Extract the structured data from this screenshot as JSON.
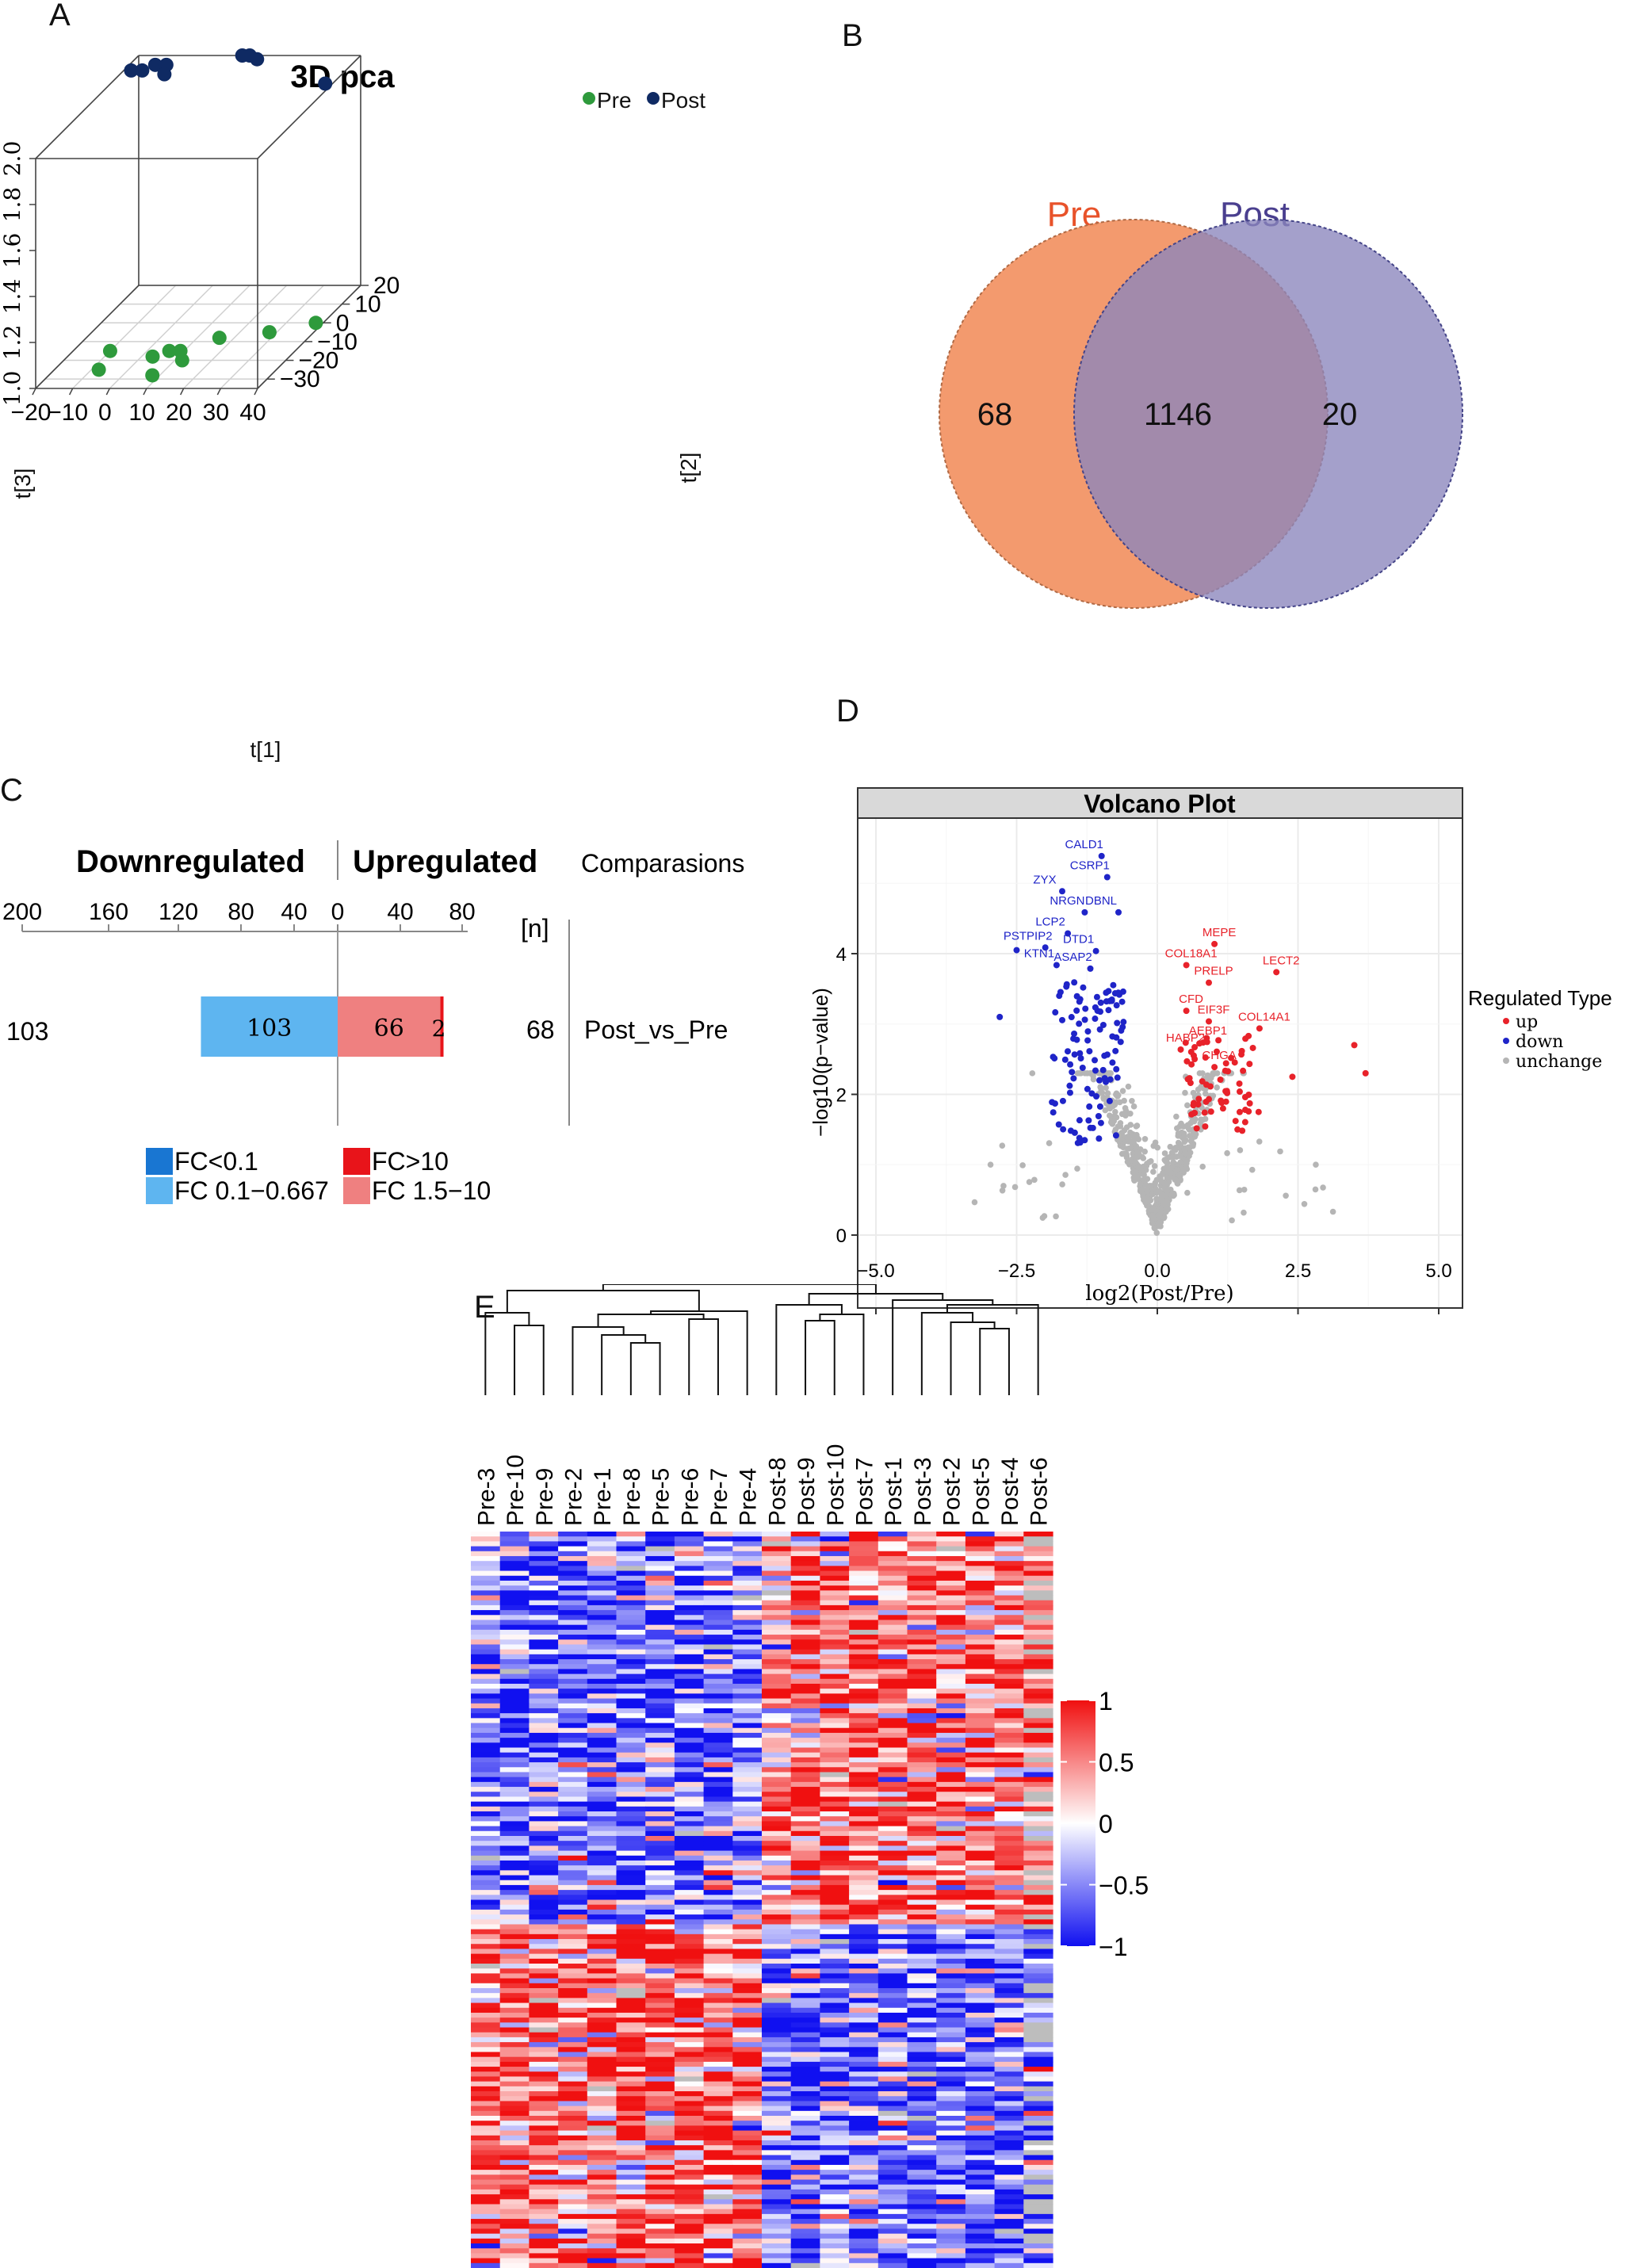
{
  "panels": {
    "a": "A",
    "b": "B",
    "c": "C",
    "d": "D",
    "e": "E"
  },
  "chart_data": [
    {
      "id": "pca",
      "type": "scatter",
      "title": "3D pca",
      "legend": [
        "Pre",
        "Post"
      ],
      "colors": {
        "Pre": "#2e9a3c",
        "Post": "#0f2a63"
      },
      "xlabel": "t[1]",
      "ylabel": "t[2]",
      "zlabel": "t[3]",
      "xticks": [
        "−20",
        "−10",
        "0",
        "10",
        "20",
        "30",
        "40"
      ],
      "yticks": [
        "20",
        "10",
        "0",
        "−10",
        "−20",
        "−30"
      ],
      "zticks": [
        "1.0",
        "1.2",
        "1.4",
        "1.6",
        "1.8",
        "2.0"
      ],
      "xlim": [
        -20,
        40
      ],
      "ylim": [
        -35,
        20
      ],
      "zlim": [
        1.0,
        2.0
      ],
      "series": [
        {
          "name": "Pre",
          "points": [
            [
              -10,
              -15,
              1.0
            ],
            [
              -8,
              -25,
              1.0
            ],
            [
              3,
              -18,
              1.0
            ],
            [
              6,
              -15,
              1.0
            ],
            [
              9,
              -15,
              1.0
            ],
            [
              12,
              -20,
              1.0
            ],
            [
              8,
              -28,
              1.0
            ],
            [
              16,
              -8,
              1.0
            ],
            [
              28,
              -5,
              1.0
            ],
            [
              38,
              0,
              1.0
            ]
          ]
        },
        {
          "name": "Post",
          "points": [
            [
              -18,
              12,
              2.0
            ],
            [
              -15,
              12,
              2.0
            ],
            [
              -13,
              15,
              2.0
            ],
            [
              -10,
              15,
              2.0
            ],
            [
              -8,
              10,
              2.0
            ],
            [
              8,
              20,
              2.0
            ],
            [
              10,
              20,
              2.0
            ],
            [
              13,
              18,
              2.0
            ],
            [
              38,
              5,
              2.0
            ]
          ]
        }
      ]
    },
    {
      "id": "venn",
      "type": "venn",
      "sets": [
        {
          "name": "Pre",
          "only": "68",
          "color": "#f29566",
          "label_color": "#e8522a"
        },
        {
          "name": "Post",
          "only": "20",
          "color": "#8a85bd",
          "label_color": "#4a3f8f"
        }
      ],
      "overlap": "1146"
    },
    {
      "id": "fc-bars",
      "type": "bar",
      "header_down": "Downregulated",
      "header_up": "Upregulated",
      "header_comparisons": "Comparasions",
      "n_label": "[n]",
      "down_ticks": [
        "200",
        "160",
        "120",
        "80",
        "40",
        "0"
      ],
      "up_ticks": [
        "40",
        "80"
      ],
      "comparison": "Post_vs_Pre",
      "down_total": "103",
      "up_total": "68",
      "segments": {
        "down_fc_lt_0_1": 0,
        "down_fc_0_1_0_667": 103,
        "up_fc_1_5_10": 66,
        "up_fc_gt_10": 2
      },
      "segment_labels": {
        "down": "103",
        "up_mid": "66",
        "up_high": "2"
      },
      "legend": [
        {
          "label": "FC<0.1",
          "color": "#1976d2"
        },
        {
          "label": "FC>10",
          "color": "#e8141a"
        },
        {
          "label": "FC 0.1−0.667",
          "color": "#5eb5f0"
        },
        {
          "label": "FC 1.5−10",
          "color": "#ef8080"
        }
      ]
    },
    {
      "id": "volcano",
      "type": "scatter",
      "title": "Volcano Plot",
      "xlabel": "log2(Post/Pre)",
      "ylabel": "−log10(p−value)",
      "xticks": [
        "−5.0",
        "−2.5",
        "0.0",
        "2.5",
        "5.0"
      ],
      "yticks": [
        "0",
        "2",
        "4"
      ],
      "xlim": [
        -5,
        5
      ],
      "ylim": [
        0,
        5.7
      ],
      "legend_title": "Regulated Type",
      "legend": [
        {
          "label": "up",
          "color": "#e8222a"
        },
        {
          "label": "down",
          "color": "#1f24c8"
        },
        {
          "label": "unchange",
          "color": "#b5b5b5"
        }
      ],
      "labels_down": [
        {
          "text": "CALD1",
          "x": -1.3,
          "y": 5.5
        },
        {
          "text": "CSRP1",
          "x": -1.2,
          "y": 5.2
        },
        {
          "text": "ZYX",
          "x": -2.0,
          "y": 5.0
        },
        {
          "text": "DBNL",
          "x": -1.0,
          "y": 4.7
        },
        {
          "text": "NRGN",
          "x": -1.6,
          "y": 4.7
        },
        {
          "text": "LCP2",
          "x": -1.9,
          "y": 4.4
        },
        {
          "text": "DTD1",
          "x": -1.4,
          "y": 4.15
        },
        {
          "text": "PSTPIP2",
          "x": -2.3,
          "y": 4.2
        },
        {
          "text": "KTN1",
          "x": -2.1,
          "y": 3.95
        },
        {
          "text": "ASAP2",
          "x": -1.5,
          "y": 3.9
        }
      ],
      "labels_up": [
        {
          "text": "MEPE",
          "x": 1.1,
          "y": 4.25
        },
        {
          "text": "COL18A1",
          "x": 0.6,
          "y": 3.95
        },
        {
          "text": "LECT2",
          "x": 2.2,
          "y": 3.85
        },
        {
          "text": "PRELP",
          "x": 1.0,
          "y": 3.7
        },
        {
          "text": "CFD",
          "x": 0.6,
          "y": 3.3
        },
        {
          "text": "EIF3F",
          "x": 1.0,
          "y": 3.15
        },
        {
          "text": "COL14A1",
          "x": 1.9,
          "y": 3.05
        },
        {
          "text": "AEBP1",
          "x": 0.9,
          "y": 2.85
        },
        {
          "text": "HABP2",
          "x": 0.5,
          "y": 2.75
        },
        {
          "text": "CHGA",
          "x": 1.1,
          "y": 2.5
        }
      ]
    },
    {
      "id": "heatmap",
      "type": "heatmap",
      "columns": [
        "Pre-3",
        "Pre-10",
        "Pre-9",
        "Pre-2",
        "Pre-1",
        "Pre-8",
        "Pre-5",
        "Pre-6",
        "Pre-7",
        "Pre-4",
        "Post-8",
        "Post-9",
        "Post-10",
        "Post-7",
        "Post-1",
        "Post-3",
        "Post-2",
        "Post-5",
        "Post-4",
        "Post-6"
      ],
      "n_rows": 150,
      "scale_ticks": [
        "1",
        "0.5",
        "0",
        "−0.5",
        "−1"
      ],
      "scale_range": [
        -1,
        1
      ],
      "colors": {
        "low": "#1010f0",
        "mid": "#ffffff",
        "high": "#f01010",
        "na": "#bdbdbd"
      }
    }
  ]
}
